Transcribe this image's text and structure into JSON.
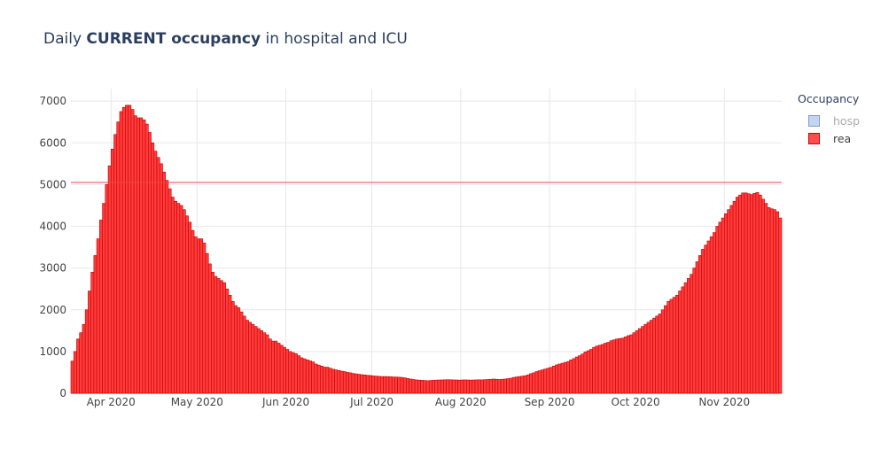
{
  "title": {
    "prefix": "Daily ",
    "bold": "CURRENT occupancy",
    "suffix": " in hospital and ICU"
  },
  "legend": {
    "title": "Occupancy",
    "items": [
      {
        "label": "hosp",
        "visible": false,
        "fill": "#c6d5ee",
        "stroke": "#7e9bd6"
      },
      {
        "label": "rea",
        "visible": true,
        "fill": "#ff4d4d",
        "stroke": "#cc0000"
      }
    ]
  },
  "chart_data": {
    "type": "bar",
    "title": "Daily CURRENT occupancy in hospital and ICU",
    "xlabel": "",
    "ylabel": "",
    "x_start": "2020-03-18",
    "x_tick_labels": [
      "Apr 2020",
      "May 2020",
      "Jun 2020",
      "Jul 2020",
      "Aug 2020",
      "Sep 2020",
      "Oct 2020",
      "Nov 2020"
    ],
    "y_ticks": [
      0,
      1000,
      2000,
      3000,
      4000,
      5000,
      6000,
      7000
    ],
    "ylim": [
      0,
      7300
    ],
    "reference_line": 5050,
    "grid": true,
    "legend_position": "top-right",
    "series": [
      {
        "name": "hosp",
        "visible": false,
        "values": []
      },
      {
        "name": "rea",
        "visible": true,
        "color": "#ff0000",
        "values": [
          771,
          1000,
          1300,
          1450,
          1650,
          2000,
          2450,
          2900,
          3300,
          3700,
          4150,
          4550,
          5000,
          5450,
          5850,
          6200,
          6500,
          6750,
          6850,
          6900,
          6900,
          6800,
          6650,
          6600,
          6600,
          6550,
          6450,
          6250,
          6000,
          5800,
          5650,
          5500,
          5300,
          5100,
          4900,
          4700,
          4600,
          4550,
          4500,
          4400,
          4250,
          4100,
          3900,
          3750,
          3700,
          3700,
          3600,
          3350,
          3100,
          2900,
          2800,
          2750,
          2700,
          2650,
          2500,
          2350,
          2200,
          2100,
          2050,
          1950,
          1850,
          1750,
          1700,
          1650,
          1600,
          1550,
          1500,
          1450,
          1400,
          1300,
          1250,
          1250,
          1200,
          1150,
          1100,
          1050,
          1000,
          975,
          950,
          900,
          850,
          825,
          800,
          775,
          750,
          700,
          675,
          650,
          625,
          625,
          600,
          575,
          560,
          545,
          530,
          520,
          500,
          490,
          475,
          465,
          455,
          445,
          440,
          430,
          425,
          415,
          410,
          405,
          400,
          400,
          398,
          395,
          390,
          388,
          385,
          380,
          370,
          355,
          340,
          330,
          320,
          315,
          310,
          305,
          300,
          305,
          310,
          315,
          318,
          320,
          322,
          325,
          322,
          320,
          318,
          315,
          318,
          320,
          318,
          315,
          318,
          320,
          322,
          320,
          325,
          330,
          335,
          340,
          335,
          330,
          335,
          340,
          350,
          360,
          380,
          390,
          400,
          410,
          420,
          440,
          470,
          490,
          520,
          540,
          560,
          580,
          600,
          620,
          650,
          680,
          700,
          720,
          740,
          760,
          800,
          830,
          870,
          900,
          940,
          990,
          1020,
          1050,
          1100,
          1130,
          1150,
          1170,
          1200,
          1220,
          1260,
          1280,
          1300,
          1310,
          1320,
          1350,
          1380,
          1400,
          1450,
          1500,
          1550,
          1600,
          1650,
          1700,
          1750,
          1800,
          1850,
          1900,
          2000,
          2100,
          2200,
          2250,
          2300,
          2350,
          2450,
          2550,
          2650,
          2750,
          2850,
          3000,
          3150,
          3300,
          3450,
          3550,
          3650,
          3750,
          3850,
          4000,
          4100,
          4200,
          4300,
          4400,
          4500,
          4600,
          4700,
          4750,
          4800,
          4800,
          4780,
          4760,
          4790,
          4810,
          4750,
          4650,
          4550,
          4450,
          4420,
          4400,
          4350,
          4200
        ]
      }
    ]
  }
}
